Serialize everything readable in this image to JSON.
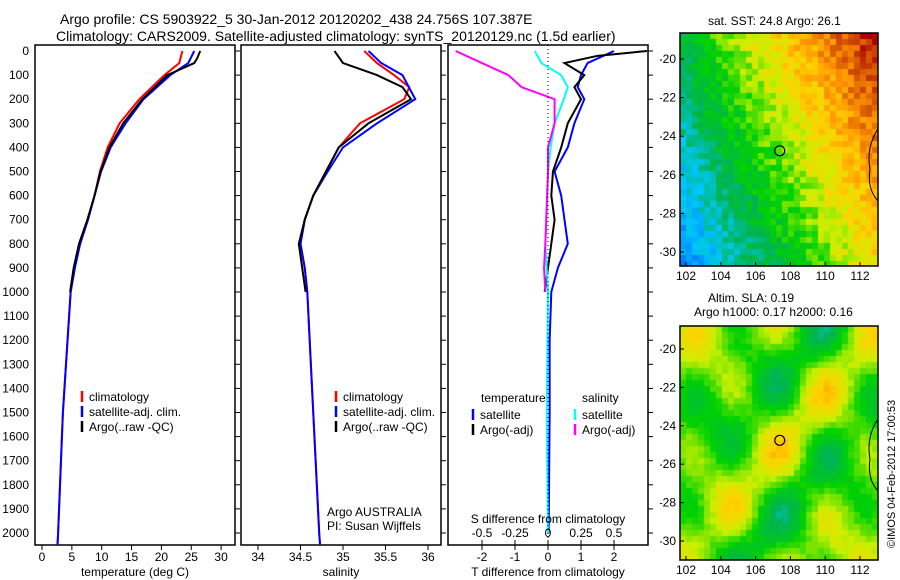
{
  "title_line1": "Argo profile: CS 5903922_5 30-Jan-2012 20120202_438 24.756S 107.387E",
  "title_line2": "Climatology: CARS2009. Satellite-adjusted climatology: synTS_20120129.nc (1.5d earlier)",
  "colors": {
    "climatology": "#ff0000",
    "satellite": "#0000ff",
    "argo": "#000000",
    "sal_satellite": "#00ffff",
    "sal_argo": "#ff00ff"
  },
  "chart_data": [
    {
      "type": "line",
      "id": "temperature",
      "xlabel": "temperature (deg C)",
      "xlim": [
        -1,
        31
      ],
      "ylim": [
        2050,
        0
      ],
      "xticks": [
        0,
        5,
        10,
        15,
        20,
        25,
        30
      ],
      "yticks": [
        0,
        100,
        200,
        300,
        400,
        500,
        600,
        700,
        800,
        900,
        1000,
        1100,
        1200,
        1300,
        1400,
        1500,
        1600,
        1700,
        1800,
        1900,
        2000
      ],
      "legend": [
        "climatology",
        "satellite-adj. clim.",
        "Argo(..raw -QC)"
      ],
      "series": [
        {
          "name": "climatology",
          "color": "#ff0000",
          "depth": [
            0,
            50,
            100,
            200,
            300,
            400,
            500,
            600,
            700,
            800,
            900,
            1000,
            1500,
            2000,
            2050
          ],
          "values": [
            23.5,
            23,
            20.5,
            16.3,
            13,
            11,
            9.7,
            8.8,
            7.7,
            6.3,
            5.5,
            4.8,
            3.5,
            2.7,
            2.6
          ]
        },
        {
          "name": "satellite-adj. clim.",
          "color": "#0000ff",
          "depth": [
            0,
            50,
            100,
            200,
            300,
            400,
            500,
            600,
            700,
            800,
            900,
            1000,
            1500,
            2000,
            2050
          ],
          "values": [
            25.5,
            24.5,
            21.5,
            17,
            14,
            11.5,
            9.9,
            8.8,
            7.7,
            6.4,
            5.5,
            4.8,
            3.5,
            2.7,
            2.6
          ]
        },
        {
          "name": "Argo(..raw -QC)",
          "color": "#000000",
          "depth": [
            0,
            30,
            50,
            100,
            200,
            300,
            400,
            500,
            600,
            700,
            800,
            900,
            1000
          ],
          "values": [
            26.5,
            26,
            25.5,
            21,
            16.8,
            13.6,
            11.3,
            9.8,
            8.8,
            7.6,
            6.2,
            5.3,
            4.7
          ]
        }
      ]
    },
    {
      "type": "line",
      "id": "salinity",
      "xlabel": "salinity",
      "xlim": [
        33.8,
        36.2
      ],
      "ylim": [
        2050,
        0
      ],
      "xticks": [
        34,
        34.5,
        35,
        35.5,
        36
      ],
      "legend": [
        "climatology",
        "satellite-adj. clim.",
        "Argo(..raw -QC)"
      ],
      "annotation": [
        "Argo AUSTRALIA",
        "PI: Susan Wijffels"
      ],
      "series": [
        {
          "name": "climatology",
          "color": "#ff0000",
          "depth": [
            0,
            50,
            100,
            150,
            200,
            300,
            400,
            500,
            600,
            700,
            800,
            900,
            1000,
            1500,
            2000,
            2050
          ],
          "values": [
            35.25,
            35.4,
            35.6,
            35.78,
            35.72,
            35.2,
            34.95,
            34.8,
            34.65,
            34.55,
            34.5,
            34.55,
            34.58,
            34.65,
            34.72,
            34.73
          ]
        },
        {
          "name": "satellite-adj. clim.",
          "color": "#0000ff",
          "depth": [
            0,
            50,
            100,
            200,
            300,
            400,
            500,
            600,
            700,
            800,
            900,
            1000,
            1500,
            2000,
            2050
          ],
          "values": [
            35.3,
            35.45,
            35.7,
            35.85,
            35.4,
            35.0,
            34.82,
            34.65,
            34.55,
            34.5,
            34.55,
            34.58,
            34.65,
            34.72,
            34.73
          ]
        },
        {
          "name": "Argo(..raw -QC)",
          "color": "#000000",
          "depth": [
            0,
            50,
            100,
            150,
            200,
            300,
            400,
            500,
            600,
            700,
            800,
            900,
            1000
          ],
          "values": [
            34.9,
            35.0,
            35.4,
            35.7,
            35.8,
            35.3,
            34.95,
            34.8,
            34.65,
            34.55,
            34.48,
            34.52,
            34.56
          ]
        }
      ]
    },
    {
      "type": "line",
      "id": "differences",
      "xlabel": "T difference from climatology",
      "x2label": "S difference from climatology",
      "xlim": [
        -3,
        3
      ],
      "x2lim": [
        -0.75,
        0.75
      ],
      "ylim": [
        2050,
        0
      ],
      "xticks": [
        "-2",
        "-1",
        "0",
        "1",
        "2"
      ],
      "x2ticks": [
        "-0.5",
        "-0.25",
        "0",
        "0.25",
        "0.5"
      ],
      "legend_titles": [
        "temperature",
        "salinity"
      ],
      "legend": [
        "satellite",
        "Argo(-adj)",
        "satellite",
        "Argo(-adj)"
      ],
      "series": [
        {
          "name": "T satellite",
          "axis": "T",
          "color": "#0000ff",
          "depth": [
            0,
            50,
            100,
            150,
            200,
            300,
            400,
            500,
            600,
            700,
            800,
            900,
            1000,
            1200,
            1500,
            2000
          ],
          "values": [
            2,
            1.2,
            1.0,
            0.9,
            1.1,
            0.8,
            0.6,
            0.2,
            0.4,
            0.5,
            0.6,
            0.3,
            0.1,
            0.05,
            0.05,
            0.02
          ]
        },
        {
          "name": "T Argo(-adj)",
          "axis": "T",
          "color": "#000000",
          "depth": [
            0,
            20,
            50,
            100,
            150,
            200,
            300,
            400,
            500,
            600,
            700,
            800,
            900,
            1000
          ],
          "values": [
            3,
            1.5,
            0.5,
            1.1,
            0.8,
            1.0,
            0.6,
            0.4,
            0.15,
            0.1,
            0.2,
            0.1,
            0,
            -0.1
          ]
        },
        {
          "name": "S satellite",
          "axis": "S",
          "color": "#00ffff",
          "depth": [
            0,
            50,
            100,
            150,
            200,
            300,
            400,
            500,
            800,
            1000,
            1500,
            2000
          ],
          "values": [
            -0.1,
            -0.05,
            0.1,
            0.15,
            0.12,
            0.05,
            0.02,
            0,
            -0.02,
            0,
            -0.01,
            0
          ]
        },
        {
          "name": "S Argo(-adj)",
          "axis": "S",
          "color": "#ff00ff",
          "depth": [
            0,
            50,
            100,
            150,
            200,
            300,
            400,
            500,
            800,
            900,
            1000
          ],
          "values": [
            -0.7,
            -0.5,
            -0.3,
            -0.2,
            0.05,
            0.05,
            0,
            0,
            -0.02,
            -0.03,
            -0.02
          ]
        }
      ]
    },
    {
      "type": "heatmap",
      "id": "sst_map",
      "title": "sat. SST: 24.8 Argo: 26.1",
      "xticks": [
        102,
        104,
        106,
        108,
        110,
        112
      ],
      "yticks": [
        -20,
        -22,
        -24,
        -26,
        -28,
        -30
      ],
      "xlim": [
        101.8,
        113
      ],
      "ylim": [
        -30.8,
        -18.9
      ],
      "float_position": [
        107.387,
        -24.756
      ]
    },
    {
      "type": "heatmap",
      "id": "sla_map",
      "title_line1": "Altim. SLA: 0.19",
      "title_line2": "Argo h1000: 0.17 h2000: 0.16",
      "xticks": [
        102,
        104,
        106,
        108,
        110,
        112
      ],
      "yticks": [
        -20,
        -22,
        -24,
        -26,
        -28,
        -30
      ],
      "xlim": [
        101.8,
        113
      ],
      "ylim": [
        -30.8,
        -18.9
      ],
      "float_position": [
        107.387,
        -24.756
      ]
    }
  ],
  "watermark": "©IMOS 04-Feb-2012 17:00:53"
}
